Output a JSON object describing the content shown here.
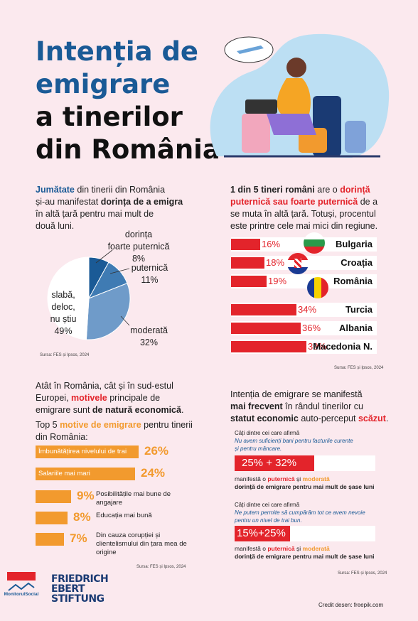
{
  "title": {
    "line1": "Intenția de",
    "line2": "emigrare",
    "line3": "a tinerilor",
    "line4": "din România"
  },
  "section1": {
    "t1": "Jumătate",
    "t2": " din tinerii din România",
    "t3": "și-au manifestat ",
    "t4": "dorința de a emigra",
    "t5": "în altă țară pentru mai mult de",
    "t6": "două luni."
  },
  "pie": {
    "type": "pie",
    "slices": [
      {
        "label": "dorința foarte puternică",
        "value": 8,
        "color": "#1a5a96"
      },
      {
        "label": "puternică",
        "value": 11,
        "color": "#3f7bb3"
      },
      {
        "label": "moderată",
        "value": 32,
        "color": "#6f9bc9"
      },
      {
        "label": "slabă, deloc, nu știu",
        "value": 49,
        "color": "#ffffff"
      }
    ],
    "labels": {
      "a1": "dorința",
      "a2": "foarte puternică",
      "a3": "8%",
      "b1": "puternică",
      "b2": "11%",
      "c1": "moderată",
      "c2": "32%",
      "d1": "slabă, deloc,",
      "d2": "nu știu",
      "d3": "49%"
    }
  },
  "source1": "Sursa: FES și Ipsos, 2024",
  "section2": {
    "t1": "1 din 5 tineri români",
    "t2": " are o ",
    "t3": "dorință",
    "t4": "puternică sau foarte puternică",
    "t5": " de a",
    "t6": "se muta în altă țară. Totuși, procentul",
    "t7": "este printre cele mai mici din regiune."
  },
  "chart_data": {
    "type": "bar",
    "categories": [
      "Bulgaria",
      "Croația",
      "România",
      "Turcia",
      "Albania",
      "Macedonia N."
    ],
    "values": [
      16,
      18,
      19,
      34,
      36,
      39
    ],
    "labels": [
      "16%",
      "18%",
      "19%",
      "34%",
      "36%",
      "39%"
    ]
  },
  "source2": "Sursa: FES și Ipsos, 2024",
  "section3": {
    "t1": "Atât în România, cât și în sud-estul",
    "t2": "Europei, ",
    "t3": "motivele",
    "t4": " principale de",
    "t5": "emigrare sunt ",
    "t6": "de natură economică",
    "t7": "Top 5 ",
    "t8": "motive de emigrare",
    "t9": " pentru tinerii",
    "t10": "din România:"
  },
  "motives": [
    {
      "label": "Îmbunătățirea nivelului de trai",
      "pct": "26%",
      "value": 26
    },
    {
      "label": "Salariile mai mari",
      "pct": "24%",
      "value": 24
    },
    {
      "label": "Posibilitățile mai bune de angajare",
      "pct": "9%",
      "value": 9
    },
    {
      "label": "Educația mai bună",
      "pct": "8%",
      "value": 8
    },
    {
      "label": "Din cauza corupției și clientelismului din țara mea de origine",
      "pct": "7%",
      "value": 7
    }
  ],
  "source3": "Sursa: FES și Ipsos, 2024",
  "section4": {
    "t1": "Intenția de emigrare se manifestă",
    "t2": "mai frecvent",
    "t3": " în rândul tinerilor cu",
    "t4": "statut economic",
    "t5": " auto-perceput ",
    "t6": "scăzut",
    "q1a": "Câți dintre cei care afirmă",
    "q1b": "Nu avem suficienți bani pentru facturile curente",
    "q1c": "și pentru mâncare.",
    "bar1": "25%  +  32%",
    "m1a": "manifestă o ",
    "m1b": "puternică",
    "m1c": " și ",
    "m1d": "moderată",
    "m1e": "dorință de emigrare pentru mai mult de șase luni",
    "q2a": "Câți dintre cei care afirmă",
    "q2b": "Ne putem permite să cumpărăm tot ce avem nevoie",
    "q2c": "pentru un nivel de trai bun.",
    "bar2": "15%+25%",
    "m2e": "dorință de emigrare pentru mai mult de șase luni"
  },
  "source4": "Sursa: FES și Ipsos, 2024",
  "footer": {
    "logo1": "MonitorulSocial",
    "fes1": "FRIEDRICH",
    "fes2": "EBERT",
    "fes3": "STIFTUNG",
    "credit": "Credit desen: freepik.com"
  }
}
